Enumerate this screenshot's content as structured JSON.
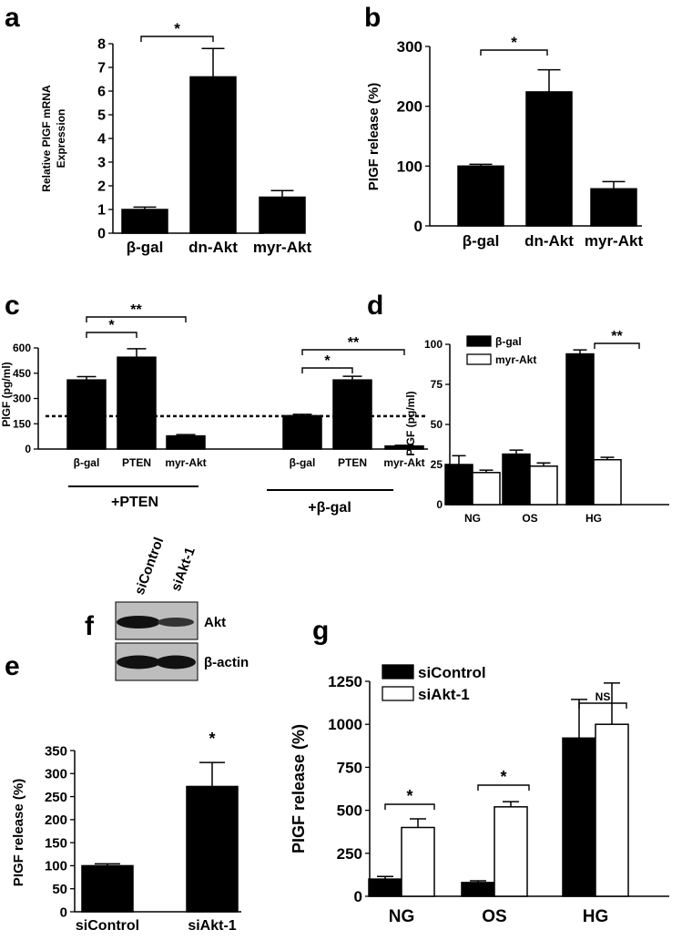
{
  "chart_data": [
    {
      "panel": "a",
      "type": "bar",
      "categories": [
        "β-gal",
        "dn-Akt",
        "myr-Akt"
      ],
      "values": [
        1.0,
        6.6,
        1.52
      ],
      "errors": [
        0.1,
        1.2,
        0.28
      ],
      "ylabel_lines": [
        "Relative PIGF mRNA",
        "Expression"
      ],
      "ylim": [
        0,
        8
      ],
      "yticks": [
        0,
        1,
        2,
        3,
        4,
        5,
        6,
        7,
        8
      ],
      "significance": [
        {
          "from": 0,
          "to": 1,
          "label": "*"
        }
      ]
    },
    {
      "panel": "b",
      "type": "bar",
      "categories": [
        "β-gal",
        "dn-Akt",
        "myr-Akt"
      ],
      "values": [
        100,
        224,
        62
      ],
      "errors": [
        3,
        37,
        12
      ],
      "ylabel": "PIGF release (%)",
      "ylim": [
        0,
        300
      ],
      "yticks": [
        0,
        100,
        200,
        300
      ],
      "significance": [
        {
          "from": 0,
          "to": 1,
          "label": "*"
        }
      ]
    },
    {
      "panel": "c",
      "type": "bar",
      "categories": [
        "β-gal",
        "PTEN",
        "myr-Akt",
        "β-gal",
        "PTEN",
        "myr-Akt"
      ],
      "values": [
        410,
        545,
        78,
        198,
        410,
        18
      ],
      "errors": [
        20,
        50,
        8,
        8,
        22,
        4
      ],
      "ylabel": "PlGF (pg/ml)",
      "ylim": [
        0,
        600
      ],
      "yticks": [
        0,
        150,
        300,
        450,
        600
      ],
      "reference_line": 195,
      "groups": [
        {
          "label": "+PTEN",
          "indices": [
            0,
            1,
            2
          ]
        },
        {
          "label": "+β-gal",
          "indices": [
            3,
            4,
            5
          ]
        }
      ],
      "significance": [
        {
          "from": 0,
          "to": 1,
          "label": "*"
        },
        {
          "from": 0,
          "to": 2,
          "label": "**"
        },
        {
          "from": 3,
          "to": 4,
          "label": "*"
        },
        {
          "from": 3,
          "to": 5,
          "label": "**"
        }
      ]
    },
    {
      "panel": "d",
      "type": "bar",
      "categories": [
        "NG",
        "OS",
        "HG"
      ],
      "series": [
        {
          "name": "β-gal",
          "values": [
            25,
            31.5,
            94
          ],
          "errors": [
            5.5,
            2.5,
            2.5
          ],
          "fill": "#000000"
        },
        {
          "name": "myr-Akt",
          "values": [
            20,
            24,
            28
          ],
          "errors": [
            1.5,
            2,
            1.5
          ],
          "fill": "#ffffff"
        }
      ],
      "ylabel": "PIGF (pg/ml)",
      "ylim": [
        0,
        100
      ],
      "yticks": [
        0,
        25,
        50,
        75,
        100
      ],
      "legend": "top-left",
      "significance": [
        {
          "group": 2,
          "label": "**"
        }
      ]
    },
    {
      "panel": "e",
      "type": "bar",
      "categories": [
        "siControl",
        "siAkt-1"
      ],
      "values": [
        100,
        272
      ],
      "errors": [
        4,
        52
      ],
      "ylabel": "PIGF release (%)",
      "ylim": [
        0,
        350
      ],
      "yticks": [
        0,
        50,
        100,
        150,
        200,
        250,
        300,
        350
      ],
      "significance": [
        {
          "bar": 1,
          "label": "*"
        }
      ]
    },
    {
      "panel": "g",
      "type": "bar",
      "categories": [
        "NG",
        "OS",
        "HG"
      ],
      "series": [
        {
          "name": "siControl",
          "values": [
            100,
            80,
            920
          ],
          "errors": [
            15,
            10,
            225
          ],
          "fill": "#000000"
        },
        {
          "name": "siAkt-1",
          "values": [
            400,
            520,
            1000
          ],
          "errors": [
            50,
            30,
            240
          ],
          "fill": "#ffffff"
        }
      ],
      "ylabel": "PIGF release (%)",
      "ylim": [
        0,
        1250
      ],
      "yticks": [
        0,
        250,
        500,
        750,
        1000,
        1250
      ],
      "legend": "top-left",
      "significance": [
        {
          "group": 0,
          "label": "*"
        },
        {
          "group": 1,
          "label": "*"
        },
        {
          "group": 2,
          "label": "NS"
        }
      ]
    }
  ],
  "panels": {
    "a": "a",
    "b": "b",
    "c": "c",
    "d": "d",
    "e": "e",
    "f": "f",
    "g": "g"
  },
  "blot": {
    "lanes": [
      "siControl",
      "siAkt-1"
    ],
    "rows": [
      {
        "label": "Akt",
        "intensity": [
          1.0,
          0.55
        ]
      },
      {
        "label": "β-actin",
        "intensity": [
          1.0,
          1.0
        ]
      }
    ]
  }
}
